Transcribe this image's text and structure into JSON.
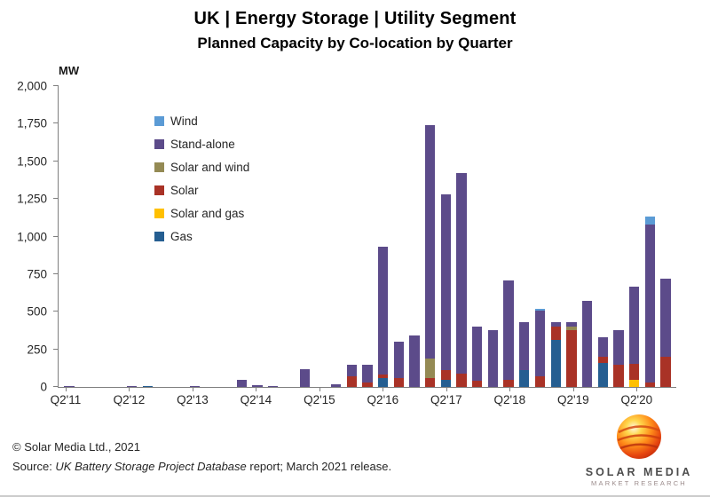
{
  "header": {
    "title": "UK | Energy Storage | Utility Segment",
    "subtitle": "Planned Capacity by Co-location by Quarter"
  },
  "chart_data": {
    "type": "bar",
    "stacked": true,
    "unit_label": "MW",
    "ylim": [
      0,
      2000
    ],
    "grid": false,
    "legend_position": "inside-top-left",
    "ytick_values": [
      0,
      250,
      500,
      750,
      1000,
      1250,
      1500,
      1750,
      2000
    ],
    "ytick_labels": [
      "0",
      "250",
      "500",
      "750",
      "1,000",
      "1,250",
      "1,500",
      "1,750",
      "2,000"
    ],
    "quarters": [
      "Q2'11",
      "Q3'11",
      "Q4'11",
      "Q1'12",
      "Q2'12",
      "Q3'12",
      "Q4'12",
      "Q1'13",
      "Q2'13",
      "Q3'13",
      "Q4'13",
      "Q1'14",
      "Q2'14",
      "Q3'14",
      "Q4'14",
      "Q1'15",
      "Q2'15",
      "Q3'15",
      "Q4'15",
      "Q1'16",
      "Q2'16",
      "Q3'16",
      "Q4'16",
      "Q1'17",
      "Q2'17",
      "Q3'17",
      "Q4'17",
      "Q1'18",
      "Q2'18",
      "Q3'18",
      "Q4'18",
      "Q1'19",
      "Q2'19",
      "Q3'19",
      "Q4'19",
      "Q1'20",
      "Q2'20",
      "Q3'20",
      "Q4'20"
    ],
    "xticks": [
      {
        "i": 0,
        "label": "Q2'11"
      },
      {
        "i": 4,
        "label": "Q2'12"
      },
      {
        "i": 8,
        "label": "Q2'13"
      },
      {
        "i": 12,
        "label": "Q2'14"
      },
      {
        "i": 16,
        "label": "Q2'15"
      },
      {
        "i": 20,
        "label": "Q2'16"
      },
      {
        "i": 24,
        "label": "Q2'17"
      },
      {
        "i": 28,
        "label": "Q2'18"
      },
      {
        "i": 32,
        "label": "Q2'19"
      },
      {
        "i": 36,
        "label": "Q2'20"
      }
    ],
    "series": [
      {
        "name": "Gas",
        "color": "#255E91",
        "values": [
          0,
          0,
          0,
          0,
          0,
          8,
          0,
          0,
          0,
          0,
          0,
          0,
          0,
          0,
          0,
          0,
          0,
          0,
          0,
          0,
          60,
          0,
          0,
          0,
          50,
          0,
          0,
          0,
          0,
          110,
          0,
          310,
          0,
          0,
          160,
          0,
          0,
          0,
          0
        ]
      },
      {
        "name": "Solar and gas",
        "color": "#FFC000",
        "values": [
          0,
          0,
          0,
          0,
          0,
          0,
          0,
          0,
          0,
          0,
          0,
          0,
          0,
          0,
          0,
          0,
          0,
          0,
          0,
          0,
          0,
          0,
          0,
          0,
          0,
          0,
          0,
          0,
          0,
          0,
          0,
          0,
          0,
          0,
          0,
          0,
          45,
          0,
          0
        ]
      },
      {
        "name": "Solar",
        "color": "#A93226",
        "values": [
          0,
          0,
          0,
          0,
          0,
          0,
          0,
          0,
          0,
          0,
          0,
          0,
          0,
          0,
          0,
          0,
          0,
          0,
          70,
          30,
          20,
          60,
          0,
          60,
          60,
          90,
          40,
          0,
          50,
          0,
          70,
          90,
          380,
          0,
          40,
          150,
          110,
          30,
          200
        ]
      },
      {
        "name": "Solar and wind",
        "color": "#948A54",
        "values": [
          0,
          0,
          0,
          0,
          0,
          0,
          0,
          0,
          0,
          0,
          0,
          0,
          0,
          0,
          0,
          0,
          0,
          0,
          0,
          0,
          0,
          0,
          0,
          130,
          0,
          0,
          0,
          0,
          0,
          0,
          0,
          0,
          20,
          0,
          0,
          0,
          0,
          0,
          0
        ]
      },
      {
        "name": "Stand-alone",
        "color": "#5C4B8A",
        "values": [
          5,
          0,
          0,
          0,
          3,
          0,
          0,
          0,
          3,
          0,
          0,
          48,
          10,
          8,
          0,
          118,
          0,
          18,
          75,
          120,
          850,
          240,
          340,
          1550,
          1170,
          1330,
          360,
          380,
          660,
          320,
          440,
          30,
          30,
          570,
          130,
          230,
          510,
          1050,
          520
        ]
      },
      {
        "name": "Wind",
        "color": "#5B9BD5",
        "values": [
          0,
          0,
          0,
          0,
          0,
          0,
          0,
          0,
          0,
          0,
          0,
          0,
          0,
          0,
          0,
          0,
          0,
          0,
          0,
          0,
          0,
          0,
          0,
          0,
          0,
          0,
          0,
          0,
          0,
          0,
          10,
          0,
          0,
          0,
          0,
          0,
          0,
          50,
          0
        ]
      }
    ]
  },
  "footer": {
    "copyright": "© Solar Media Ltd., 2021",
    "source_prefix": "Source: ",
    "source_italic": "UK Battery Storage Project Database",
    "source_suffix": " report; March 2021 release.",
    "logo_line1": "SOLAR MEDIA",
    "logo_line2": "MARKET RESEARCH"
  }
}
